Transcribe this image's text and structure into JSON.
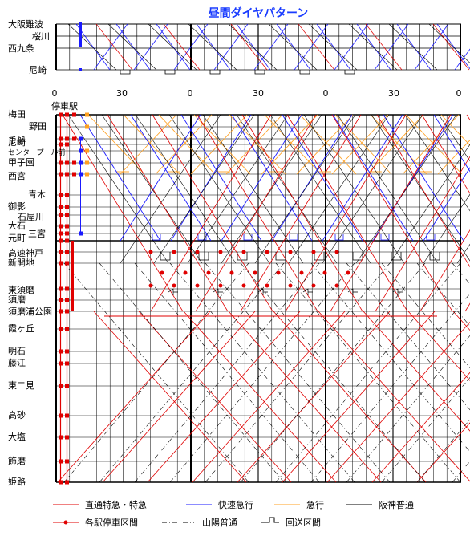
{
  "title": "昼間ダイヤパターン",
  "stops_header": "停車駅",
  "top_stations": [
    {
      "label": "大阪難波"
    },
    {
      "label": "桜川"
    },
    {
      "label": "西九条"
    },
    {
      "label": "尼崎"
    }
  ],
  "main_stations": [
    {
      "label": "梅田"
    },
    {
      "label": "野田"
    },
    {
      "label": "尼崎"
    },
    {
      "label": "千船"
    },
    {
      "label": "センタープール前"
    },
    {
      "label": "甲子園"
    },
    {
      "label": "西宮"
    },
    {
      "label": "青木"
    },
    {
      "label": "御影"
    },
    {
      "label": "石屋川"
    },
    {
      "label": "大石"
    },
    {
      "label": "三宮"
    },
    {
      "label": "元町"
    },
    {
      "label": "高速神戸"
    },
    {
      "label": "新開地"
    },
    {
      "label": "東須磨"
    },
    {
      "label": "須磨"
    },
    {
      "label": "須磨浦公園"
    },
    {
      "label": "霞ヶ丘"
    },
    {
      "label": "明石"
    },
    {
      "label": "藤江"
    },
    {
      "label": "東二見"
    },
    {
      "label": "高砂"
    },
    {
      "label": "大塩"
    },
    {
      "label": "飾磨"
    },
    {
      "label": "姫路"
    }
  ],
  "time_ticks": [
    "0",
    "30",
    "0",
    "30",
    "0",
    "30",
    "0"
  ],
  "legend": [
    {
      "label": "直通特急・特急",
      "color": "#e00000",
      "style": "line"
    },
    {
      "label": "快速急行",
      "color": "#1a1aff",
      "style": "line"
    },
    {
      "label": "急行",
      "color": "#ffa020",
      "style": "line"
    },
    {
      "label": "阪神普通",
      "color": "#000000",
      "style": "line"
    },
    {
      "label": "各駅停車区間",
      "color": "#e00000",
      "style": "dotline"
    },
    {
      "label": "山陽普通",
      "color": "#000000",
      "style": "dashdot"
    },
    {
      "label": "回送区間",
      "color": "#000000",
      "style": "deadhead"
    }
  ],
  "colors": {
    "title": "#1a3cff",
    "limited_express": "#e00000",
    "rapid_express": "#1a1aff",
    "express": "#ffa020",
    "local": "#000000"
  }
}
